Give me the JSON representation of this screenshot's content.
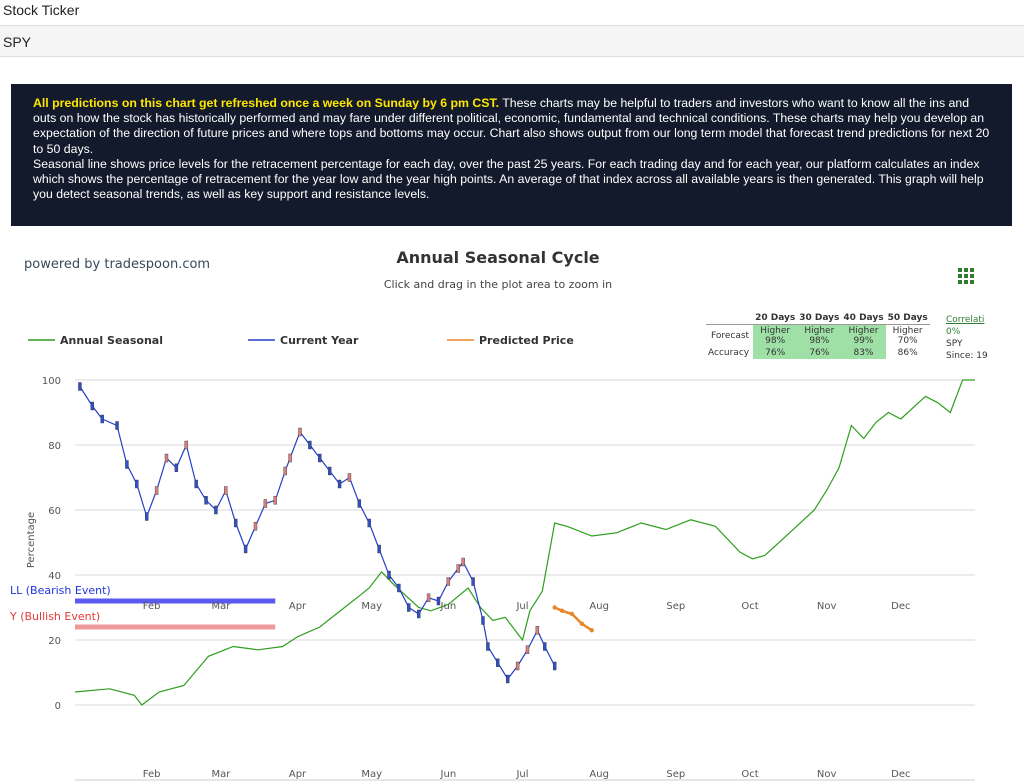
{
  "header": {
    "field_label": "Stock Ticker",
    "ticker": "SPY"
  },
  "info": {
    "highlight": "All predictions on this chart get refreshed once a week on Sunday by 6 pm CST.",
    "text1": " These charts may be helpful to traders and investors who want to know all the ins and outs on how the stock has historically performed and may fare under different political, economic, fundamental and technical conditions. These charts may help you develop an expectation of the direction of future prices and where tops and bottoms may occur. Chart also shows output from our long term model that forecast trend predictions for next 20 to 50 days.",
    "text2": "Seasonal line shows price levels for the retracement percentage for each day, over the past 25 years. For each trading day and for each year, our platform calculates an index which shows the percentage of retracement for the year low and the year high points. An average of that index across all available years is then generated. This graph will help you detect seasonal trends, as well as key support and resistance levels."
  },
  "powered_by": "powered by tradespoon.com",
  "menu_icon": "grid-menu-icon",
  "stats": {
    "headers": [
      "20 Days",
      "30 Days",
      "40 Days",
      "50 Days"
    ],
    "forecast_label": "Forecast",
    "accuracy_label": "Accuracy",
    "forecast": [
      [
        "Higher",
        "98%"
      ],
      [
        "Higher",
        "98%"
      ],
      [
        "Higher",
        "99%"
      ],
      [
        "Higher",
        "70%"
      ]
    ],
    "accuracy": [
      "76%",
      "76%",
      "83%",
      "86%"
    ],
    "highlighted": [
      true,
      true,
      true,
      false
    ],
    "side_link": "Correlati",
    "side_pct": "0%",
    "side_ticker": "SPY",
    "side_since": "Since: 19"
  },
  "chart_data": {
    "type": "line",
    "title": "Annual Seasonal Cycle",
    "subtitle": "Click and drag in the plot area to zoom in",
    "ylabel": "Percentage",
    "xlabel": "",
    "ylim": [
      0,
      100
    ],
    "yticks": [
      0,
      20,
      40,
      60,
      80,
      100
    ],
    "x_axis": "day of year",
    "xlim": [
      1,
      365
    ],
    "months": [
      {
        "label": "Feb",
        "day": 32
      },
      {
        "label": "Mar",
        "day": 60
      },
      {
        "label": "Apr",
        "day": 91
      },
      {
        "label": "May",
        "day": 121
      },
      {
        "label": "Jun",
        "day": 152
      },
      {
        "label": "Jul",
        "day": 182
      },
      {
        "label": "Aug",
        "day": 213
      },
      {
        "label": "Sep",
        "day": 244
      },
      {
        "label": "Oct",
        "day": 274
      },
      {
        "label": "Nov",
        "day": 305
      },
      {
        "label": "Dec",
        "day": 335
      }
    ],
    "legend": "top",
    "grid": true,
    "series": [
      {
        "name": "Annual Seasonal",
        "color": "#2e9e1e",
        "x": [
          1,
          15,
          25,
          28,
          35,
          45,
          55,
          65,
          75,
          85,
          91,
          100,
          110,
          115,
          120,
          125,
          130,
          140,
          145,
          152,
          160,
          165,
          170,
          175,
          178,
          182,
          185,
          190,
          195,
          200,
          210,
          220,
          230,
          240,
          250,
          260,
          270,
          275,
          280,
          290,
          300,
          305,
          310,
          315,
          320,
          325,
          330,
          335,
          345,
          350,
          355,
          360,
          365
        ],
        "y": [
          4,
          5,
          3,
          0,
          4,
          6,
          15,
          18,
          17,
          18,
          21,
          24,
          30,
          33,
          36,
          41,
          37,
          30,
          29,
          31,
          36,
          30,
          26,
          27,
          24,
          20,
          29,
          35,
          56,
          55,
          52,
          53,
          56,
          54,
          57,
          55,
          47,
          45,
          46,
          53,
          60,
          66,
          73,
          86,
          82,
          87,
          90,
          88,
          95,
          93,
          90,
          100,
          100
        ]
      },
      {
        "name": "Current Year",
        "color": "#2440c8",
        "x": [
          3,
          8,
          12,
          18,
          22,
          26,
          30,
          34,
          38,
          42,
          46,
          50,
          54,
          58,
          62,
          66,
          70,
          74,
          78,
          82,
          86,
          88,
          92,
          96,
          100,
          104,
          108,
          112,
          116,
          120,
          124,
          128,
          132,
          136,
          140,
          144,
          148,
          152,
          156,
          158,
          162,
          166,
          168,
          172,
          176,
          180,
          184,
          188,
          191,
          195
        ],
        "y": [
          98,
          92,
          88,
          86,
          74,
          68,
          58,
          66,
          76,
          73,
          80,
          68,
          63,
          60,
          66,
          56,
          48,
          55,
          62,
          63,
          72,
          76,
          84,
          80,
          76,
          72,
          68,
          70,
          62,
          56,
          48,
          40,
          36,
          30,
          28,
          33,
          32,
          38,
          42,
          44,
          38,
          26,
          18,
          13,
          8,
          12,
          17,
          23,
          18,
          12
        ]
      },
      {
        "name": "Predicted Price",
        "color": "#e8862a",
        "x": [
          195,
          198,
          202,
          206,
          210
        ],
        "y": [
          30,
          29,
          28,
          25,
          23
        ]
      }
    ],
    "events": [
      {
        "label": "LL (Bearish Event)",
        "color": "#5a5af0",
        "start": 1,
        "end": 82,
        "y": 32
      },
      {
        "label": "Y (Bullish Event)",
        "color": "#ef9a9a",
        "start": 1,
        "end": 82,
        "y": 24
      }
    ]
  }
}
